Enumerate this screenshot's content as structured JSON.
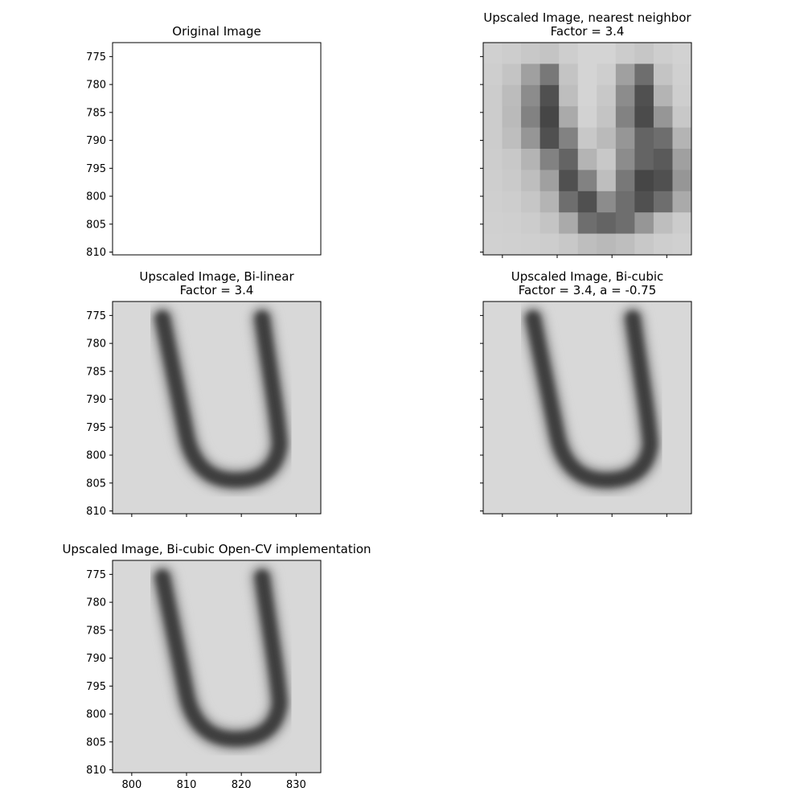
{
  "colors": {
    "background": "#ffffff",
    "axes": "#000000",
    "dark": "#3e3e3e",
    "light": "#d8d8d8",
    "white": "#ffffff"
  },
  "chart_data": [
    {
      "type": "heatmap",
      "title": "Original Image",
      "subtitle": "",
      "xlim": [
        796.5,
        834.5
      ],
      "ylim": [
        810.5,
        772.5
      ],
      "xticks": [],
      "yticks": [
        775,
        780,
        785,
        790,
        795,
        800,
        805,
        810
      ],
      "content": "blank"
    },
    {
      "type": "heatmap",
      "title": "Upscaled Image, nearest neighbor",
      "subtitle": "Factor = 3.4",
      "xlim": [
        796.5,
        834.5
      ],
      "ylim": [
        810.5,
        772.5
      ],
      "xticks": [],
      "yticks": [],
      "content": "nearest",
      "grid": [
        [
          208,
          205,
          200,
          196,
          206,
          212,
          212,
          204,
          198,
          206,
          210
        ],
        [
          206,
          196,
          160,
          120,
          196,
          212,
          206,
          160,
          110,
          196,
          208
        ],
        [
          204,
          188,
          140,
          80,
          190,
          212,
          200,
          140,
          80,
          180,
          206
        ],
        [
          204,
          186,
          130,
          70,
          170,
          210,
          196,
          130,
          75,
          150,
          200
        ],
        [
          204,
          190,
          150,
          80,
          130,
          200,
          186,
          150,
          100,
          110,
          180
        ],
        [
          205,
          200,
          180,
          130,
          100,
          180,
          200,
          140,
          100,
          90,
          160
        ],
        [
          206,
          202,
          190,
          160,
          80,
          130,
          190,
          120,
          70,
          80,
          150
        ],
        [
          207,
          205,
          198,
          180,
          110,
          80,
          140,
          110,
          80,
          110,
          170
        ],
        [
          208,
          207,
          204,
          196,
          170,
          110,
          100,
          110,
          150,
          190,
          204
        ],
        [
          209,
          208,
          207,
          205,
          200,
          190,
          185,
          190,
          200,
          206,
          208
        ]
      ]
    },
    {
      "type": "heatmap",
      "title": "Upscaled Image, Bi-linear",
      "subtitle": "Factor = 3.4",
      "xlim": [
        796.5,
        834.5
      ],
      "ylim": [
        810.5,
        772.5
      ],
      "xticks": [],
      "yticks": [
        775,
        780,
        785,
        790,
        795,
        800,
        805,
        810
      ],
      "content": "smooth"
    },
    {
      "type": "heatmap",
      "title": "Upscaled Image, Bi-cubic",
      "subtitle": "Factor = 3.4, a = -0.75",
      "xlim": [
        796.5,
        834.5
      ],
      "ylim": [
        810.5,
        772.5
      ],
      "xticks": [],
      "yticks": [],
      "content": "smooth"
    },
    {
      "type": "heatmap",
      "title": "Upscaled Image, Bi-cubic Open-CV implementation",
      "subtitle": "",
      "xlim": [
        796.5,
        834.5
      ],
      "ylim": [
        810.5,
        772.5
      ],
      "xticks": [
        800,
        810,
        820,
        830
      ],
      "yticks": [
        775,
        780,
        785,
        790,
        795,
        800,
        805,
        810
      ],
      "content": "smooth"
    }
  ]
}
